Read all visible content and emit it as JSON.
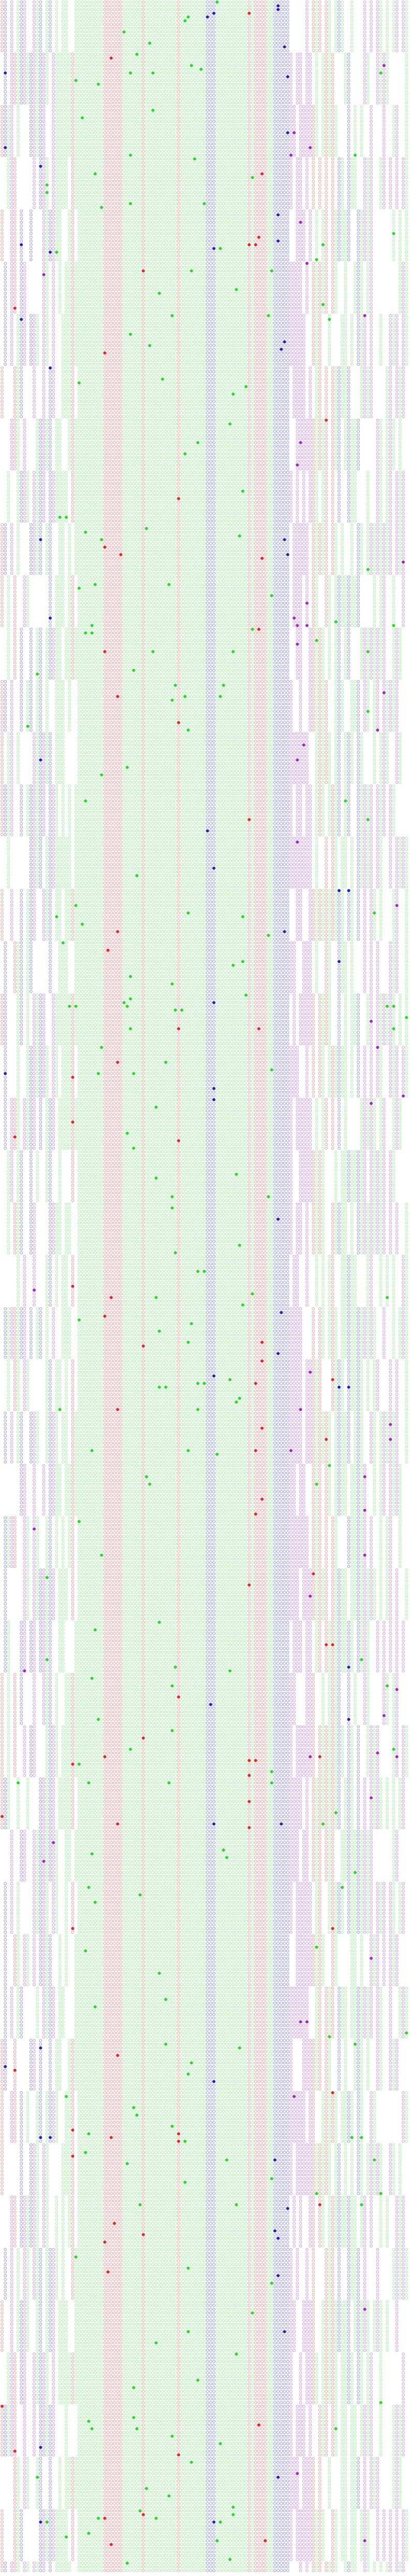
{
  "title": "",
  "colors": {
    "background": "#ffffff",
    "green": "#22dd22",
    "green_light": "#99ee99",
    "red": "#ee2222",
    "red_light": "#f09090",
    "blue": "#2222cc",
    "blue_light": "#8888ee",
    "purple": "#aa22cc",
    "purple_light": "#cc88ee"
  },
  "legend": "none",
  "grid": false,
  "mark_shape": "circle",
  "palette_order": [
    "green",
    "red",
    "blue",
    "purple"
  ]
}
